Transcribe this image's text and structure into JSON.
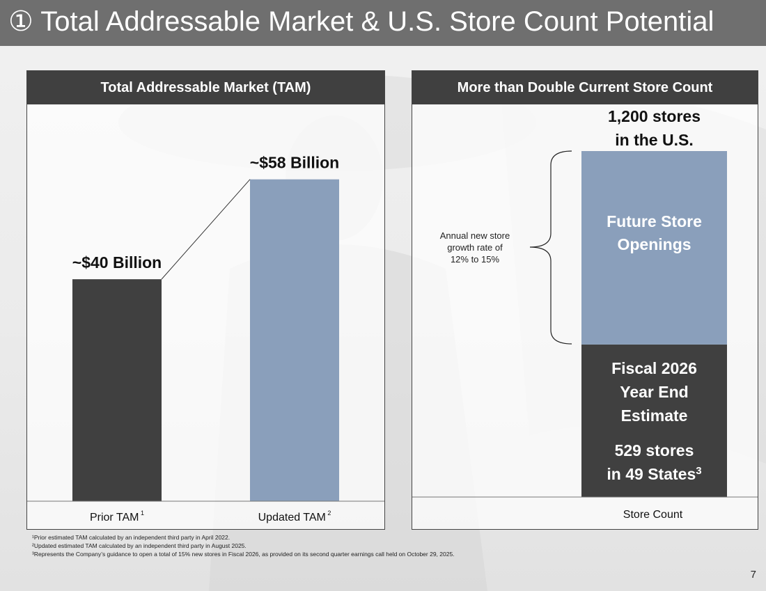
{
  "title": "① Total Addressable Market & U.S. Store Count Potential",
  "page_number": "7",
  "colors": {
    "dark": "#404040",
    "blue": "#8a9fbb",
    "title_bg": "#6f6f6f"
  },
  "left_panel": {
    "header": "Total Addressable Market (TAM)"
  },
  "right_panel": {
    "header": "More than Double Current Store Count",
    "top_label_line1": "1,200 stores",
    "top_label_line2": "in the U.S.",
    "growth_line1": "Annual new store",
    "growth_line2": "growth rate of",
    "growth_line3": "12% to 15%",
    "future_line1": "Future Store",
    "future_line2": "Openings",
    "estimate_line1": "Fiscal 2026",
    "estimate_line2": "Year End",
    "estimate_line3": "Estimate",
    "current_line1": "529 stores",
    "current_line2": "in 49 States",
    "current_sup": "3",
    "x_label": "Store Count"
  },
  "footnotes": [
    "¹Prior estimated TAM calculated by an independent third party in April 2022.",
    "²Updated estimated TAM calculated by an independent third party in August 2025.",
    "³Represents the Company’s guidance to open a total of 15% new stores in Fiscal 2026, as provided on its second quarter earnings call held on October 29, 2025."
  ],
  "chart_data": [
    {
      "type": "bar",
      "title": "Total Addressable Market (TAM)",
      "categories": [
        "Prior TAM",
        "Updated TAM"
      ],
      "category_superscripts": [
        "1",
        "2"
      ],
      "values": [
        40,
        58
      ],
      "value_labels": [
        "~$40 Billion",
        "~$58 Billion"
      ],
      "bar_colors": [
        "#404040",
        "#8a9fbb"
      ],
      "ylim": [
        0,
        70
      ],
      "grid": false
    },
    {
      "type": "bar",
      "stacked": true,
      "title": "More than Double Current Store Count",
      "categories": [
        "Store Count"
      ],
      "series": [
        {
          "name": "Fiscal 2026 Year End Estimate",
          "values": [
            529
          ],
          "color": "#404040"
        },
        {
          "name": "Future Store Openings",
          "values": [
            671
          ],
          "color": "#8a9fbb"
        }
      ],
      "total": 1200,
      "ylim": [
        0,
        1200
      ],
      "grid": false
    }
  ]
}
